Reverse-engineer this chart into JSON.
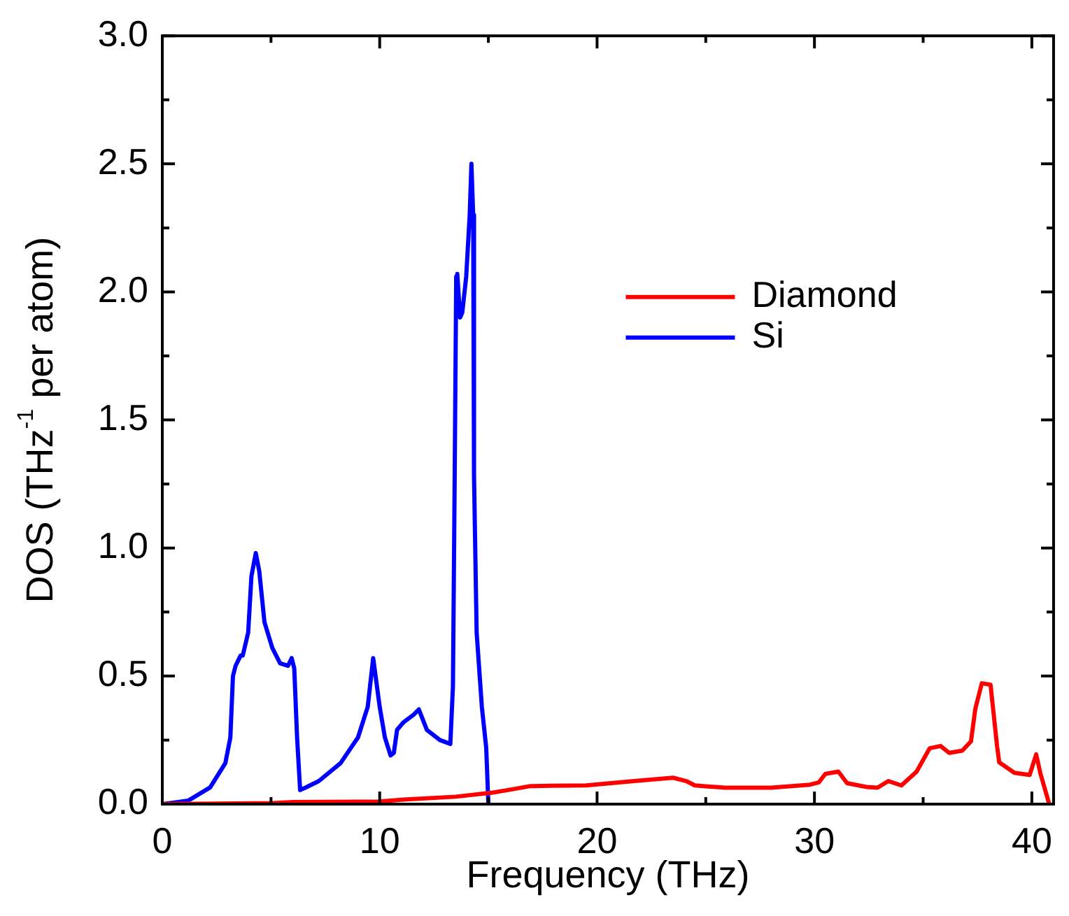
{
  "chart_data": {
    "type": "line",
    "xlabel": "Frequency (THz)",
    "ylabel": "DOS (THz$^{-1}$ per atom)",
    "xlim": [
      0,
      41
    ],
    "ylim": [
      0,
      3
    ],
    "xticks": [
      0,
      {
        "value": 5,
        "label": null
      },
      10,
      {
        "value": 15,
        "label": null
      },
      20,
      {
        "value": 25,
        "label": null
      },
      30,
      {
        "value": 35,
        "label": null
      },
      40
    ],
    "yticks": [
      "0.0",
      {
        "value": 0.25,
        "label": null
      },
      {
        "value": 0.5,
        "label": "0.5"
      },
      {
        "value": 0.75,
        "label": null
      },
      {
        "value": 1,
        "label": "1.0"
      },
      {
        "value": 1.25,
        "label": null
      },
      {
        "value": 1.5,
        "label": "1.5"
      },
      {
        "value": 1.75,
        "label": null
      },
      {
        "value": 2,
        "label": "2.0"
      },
      {
        "value": 2.25,
        "label": null
      },
      {
        "value": 2.5,
        "label": "2.5"
      },
      {
        "value": 2.75,
        "label": null
      },
      {
        "value": 3,
        "label": "3.0"
      }
    ],
    "grid": false,
    "legend": "top right",
    "marker": "none",
    "line_style": "solid",
    "series": [
      {
        "name": "Diamond",
        "color": "#ff0000",
        "x": [
          0,
          5.1,
          6,
          10,
          11.1,
          13.5,
          15.2,
          15.9,
          16.9,
          17.8,
          19.5,
          21.7,
          23.5,
          24.1,
          24.5,
          25.9,
          28,
          29.8,
          30.2,
          30.5,
          31.1,
          31.5,
          32.4,
          32.9,
          33.4,
          34,
          34.7,
          35.3,
          35.8,
          36.2,
          36.8,
          37.2,
          37.4,
          37.7,
          38.1,
          38.4,
          38.5,
          39.2,
          39.9,
          40.2,
          40.4,
          40.8
        ],
        "values": [
          0,
          0.004,
          0.008,
          0.01,
          0.018,
          0.029,
          0.045,
          0.055,
          0.07,
          0.072,
          0.073,
          0.09,
          0.103,
          0.09,
          0.073,
          0.064,
          0.064,
          0.076,
          0.085,
          0.118,
          0.127,
          0.082,
          0.067,
          0.064,
          0.09,
          0.073,
          0.127,
          0.218,
          0.227,
          0.2,
          0.209,
          0.245,
          0.372,
          0.472,
          0.466,
          0.227,
          0.163,
          0.122,
          0.114,
          0.194,
          0.118,
          0
        ]
      },
      {
        "name": "Si",
        "color": "#0000ff",
        "x": [
          0,
          1.2,
          2.2,
          2.9,
          3.13,
          3.25,
          3.37,
          3.6,
          3.7,
          3.95,
          4.1,
          4.3,
          4.46,
          4.7,
          5.06,
          5.42,
          5.78,
          5.95,
          6.07,
          6.2,
          6.34,
          6.6,
          7.2,
          8.2,
          9,
          9.45,
          9.7,
          10,
          10.24,
          10.5,
          10.65,
          10.8,
          11.1,
          11.57,
          11.8,
          12.17,
          12.77,
          13.25,
          13.37,
          13.45,
          13.52,
          13.57,
          13.7,
          13.8,
          13.98,
          14.14,
          14.22,
          14.3,
          14.34,
          14.46,
          14.7,
          14.9,
          15
        ],
        "values": [
          0,
          0.014,
          0.065,
          0.16,
          0.26,
          0.5,
          0.54,
          0.58,
          0.58,
          0.67,
          0.89,
          0.98,
          0.91,
          0.71,
          0.61,
          0.55,
          0.54,
          0.57,
          0.53,
          0.26,
          0.055,
          0.065,
          0.09,
          0.16,
          0.26,
          0.38,
          0.57,
          0.38,
          0.26,
          0.19,
          0.2,
          0.29,
          0.32,
          0.35,
          0.37,
          0.29,
          0.25,
          0.235,
          0.46,
          1.28,
          2.06,
          2.07,
          1.9,
          1.92,
          2.06,
          2.3,
          2.5,
          2.3,
          1.28,
          0.67,
          0.38,
          0.22,
          0
        ]
      }
    ]
  }
}
